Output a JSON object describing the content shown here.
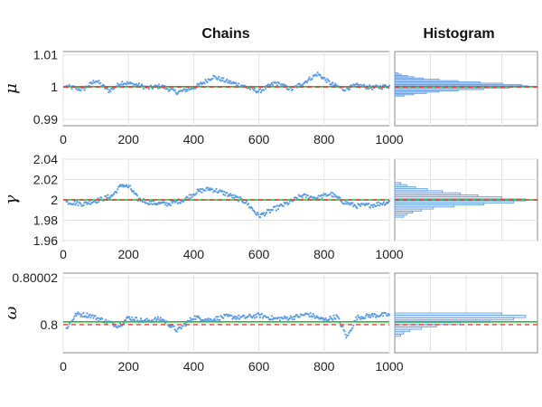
{
  "titles": {
    "chains": "Chains",
    "histogram": "Histogram"
  },
  "colors": {
    "samples": "#5b9be8",
    "mean": "#22c23a",
    "truth": "#e23a3a",
    "hist_fill": "#dfe8f7",
    "hist_edge": "#5b9be8"
  },
  "chart_data": [
    {
      "type": "scatter",
      "parameter": "μ",
      "panel": "chains",
      "xlim": [
        0,
        1000
      ],
      "xticks": [
        "0",
        "200",
        "400",
        "600",
        "800",
        "1000"
      ],
      "ylim": [
        0.988,
        1.011
      ],
      "yticks": [
        0.99,
        1,
        1.01
      ],
      "ytick_labels": [
        "0.99",
        "1",
        "1.01"
      ],
      "grid": true,
      "mean_line": 1.0001,
      "true_value": 1.0,
      "samples": [
        [
          10,
          1.0002
        ],
        [
          60,
          0.9992
        ],
        [
          100,
          1.0021
        ],
        [
          140,
          0.9988
        ],
        [
          180,
          1.0014
        ],
        [
          230,
          1.0006
        ],
        [
          260,
          0.9997
        ],
        [
          300,
          1.0003
        ],
        [
          350,
          0.9983
        ],
        [
          400,
          0.9998
        ],
        [
          420,
          1.0008
        ],
        [
          460,
          1.0032
        ],
        [
          500,
          1.0018
        ],
        [
          550,
          1.0004
        ],
        [
          600,
          0.9986
        ],
        [
          650,
          1.0013
        ],
        [
          700,
          0.9993
        ],
        [
          740,
          1.0015
        ],
        [
          780,
          1.0041
        ],
        [
          820,
          1.0011
        ],
        [
          860,
          0.9993
        ],
        [
          900,
          1.0005
        ],
        [
          950,
          0.9998
        ],
        [
          1000,
          1.0003
        ]
      ]
    },
    {
      "type": "bar",
      "parameter": "μ",
      "panel": "histogram",
      "orientation": "horizontal",
      "bins": [
        0.9974,
        0.9978,
        0.9982,
        0.9986,
        0.999,
        0.9994,
        0.9998,
        1.0002,
        1.0006,
        1.001,
        1.0014,
        1.0018,
        1.0022,
        1.0026,
        1.003,
        1.0034,
        1.0038,
        1.0042
      ],
      "counts": [
        3,
        6,
        10,
        14,
        20,
        28,
        36,
        42,
        40,
        34,
        27,
        20,
        14,
        9,
        6,
        4,
        2,
        1
      ],
      "count_max": 45,
      "mean_line": 1.0001,
      "true_value": 1.0
    },
    {
      "type": "scatter",
      "parameter": "γ",
      "panel": "chains",
      "xlim": [
        0,
        1000
      ],
      "xticks": [
        "0",
        "200",
        "400",
        "600",
        "800",
        "1000"
      ],
      "ylim": [
        1.96,
        2.04
      ],
      "yticks": [
        1.96,
        1.98,
        2,
        2.02,
        2.04
      ],
      "ytick_labels": [
        "1.96",
        "1.98",
        "2",
        "2.02",
        "2.04"
      ],
      "grid": true,
      "mean_line": 2.0,
      "true_value": 2.0,
      "samples": [
        [
          10,
          1.998
        ],
        [
          60,
          1.996
        ],
        [
          110,
          2.0
        ],
        [
          150,
          2.004
        ],
        [
          180,
          2.015
        ],
        [
          205,
          2.012
        ],
        [
          230,
          2.001
        ],
        [
          270,
          1.997
        ],
        [
          320,
          1.996
        ],
        [
          370,
          2.0
        ],
        [
          410,
          2.008
        ],
        [
          450,
          2.011
        ],
        [
          500,
          2.006
        ],
        [
          560,
          1.998
        ],
        [
          600,
          1.984
        ],
        [
          640,
          1.99
        ],
        [
          690,
          1.997
        ],
        [
          730,
          2.004
        ],
        [
          780,
          2.002
        ],
        [
          820,
          2.006
        ],
        [
          860,
          1.998
        ],
        [
          900,
          1.994
        ],
        [
          950,
          1.995
        ],
        [
          1000,
          1.998
        ]
      ]
    },
    {
      "type": "bar",
      "parameter": "γ",
      "panel": "histogram",
      "orientation": "horizontal",
      "bins": [
        1.984,
        1.986,
        1.988,
        1.99,
        1.992,
        1.994,
        1.996,
        1.998,
        2.0,
        2.002,
        2.004,
        2.006,
        2.008,
        2.01,
        2.012,
        2.014,
        2.016
      ],
      "counts": [
        3,
        4,
        6,
        9,
        13,
        20,
        30,
        40,
        44,
        36,
        28,
        22,
        16,
        11,
        7,
        4,
        2
      ],
      "count_max": 48,
      "mean_line": 2.0,
      "true_value": 2.0
    },
    {
      "type": "scatter",
      "parameter": "ω",
      "panel": "chains",
      "xlim": [
        0,
        1000
      ],
      "xticks": [
        "0",
        "200",
        "400",
        "600",
        "800",
        "1000"
      ],
      "ylim": [
        0.799988,
        0.800022
      ],
      "yticks": [
        0.8,
        0.80002
      ],
      "ytick_labels": [
        "0.8",
        "0.80002"
      ],
      "grid": true,
      "mean_line": 0.8000012,
      "true_value": 0.8,
      "samples": [
        [
          10,
          0.7999985
        ],
        [
          40,
          0.8000045
        ],
        [
          80,
          0.800004
        ],
        [
          120,
          0.800002
        ],
        [
          170,
          0.7999995
        ],
        [
          200,
          0.800003
        ],
        [
          250,
          0.8000015
        ],
        [
          300,
          0.8000025
        ],
        [
          350,
          0.7999975
        ],
        [
          400,
          0.8000032
        ],
        [
          450,
          0.800002
        ],
        [
          500,
          0.8000035
        ],
        [
          550,
          0.800003
        ],
        [
          600,
          0.800004
        ],
        [
          650,
          0.8000025
        ],
        [
          700,
          0.800003
        ],
        [
          750,
          0.8000045
        ],
        [
          800,
          0.800002
        ],
        [
          840,
          0.8000035
        ],
        [
          870,
          0.7999945
        ],
        [
          900,
          0.800003
        ],
        [
          950,
          0.800004
        ],
        [
          1000,
          0.8000042
        ]
      ]
    },
    {
      "type": "bar",
      "parameter": "ω",
      "panel": "histogram",
      "orientation": "horizontal",
      "bins": [
        0.7999955,
        0.7999965,
        0.7999975,
        0.7999985,
        0.7999995,
        0.8000005,
        0.8000015,
        0.8000025,
        0.8000035,
        0.8000045
      ],
      "counts": [
        2,
        3,
        5,
        9,
        14,
        22,
        32,
        40,
        44,
        36
      ],
      "count_max": 48,
      "mean_line": 0.8000012,
      "true_value": 0.8
    }
  ]
}
